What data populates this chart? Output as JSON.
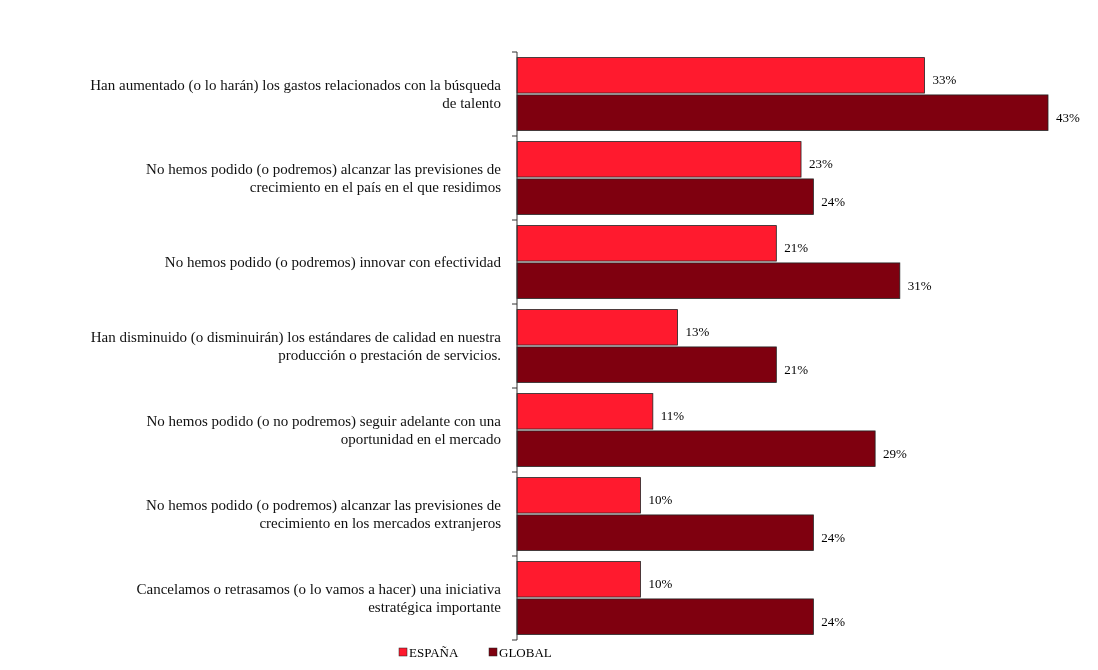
{
  "chart_data": {
    "type": "bar",
    "orientation": "horizontal",
    "categories": [
      "Han aumentado (o lo harán) los gastos relacionados con la búsqueda de talento",
      "No hemos podido (o podremos) alcanzar las previsiones de crecimiento en el país en el que residimos",
      "No hemos podido (o podremos) innovar con efectividad",
      "Han disminuido (o disminuirán) los estándares de calidad en nuestra producción o prestación de servicios.",
      "No hemos podido (o no podremos) seguir adelante con una oportunidad en el mercado",
      "No hemos podido (o podremos) alcanzar las previsiones de crecimiento en los mercados extranjeros",
      "Cancelamos o retrasamos (o lo vamos a hacer) una iniciativa estratégica importante"
    ],
    "series": [
      {
        "name": "ESPAÑA",
        "color": "#ff1a2e",
        "values": [
          33,
          23,
          21,
          13,
          11,
          10,
          10
        ],
        "value_labels": [
          "33%",
          "23%",
          "21%",
          "13%",
          "11%",
          "10%",
          "10%"
        ]
      },
      {
        "name": "GLOBAL",
        "color": "#7f000f",
        "values": [
          43,
          24,
          31,
          21,
          29,
          24,
          24
        ],
        "value_labels": [
          "43%",
          "24%",
          "31%",
          "21%",
          "29%",
          "24%",
          "24%"
        ]
      }
    ],
    "legend": "bottom",
    "grid": false
  }
}
